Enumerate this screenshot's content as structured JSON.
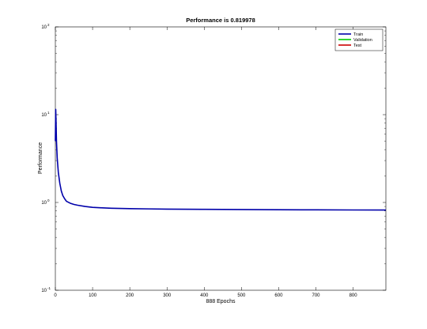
{
  "chart_data": {
    "type": "line",
    "title": "Performance is 0.819978",
    "xlabel": "888 Epochs",
    "ylabel": "Performance",
    "xlim": [
      0,
      888
    ],
    "ylim": [
      0.1,
      100
    ],
    "y_scale": "log",
    "grid": false,
    "legend_position": "top-right",
    "x_ticks": [
      0,
      100,
      200,
      300,
      400,
      500,
      600,
      700,
      800
    ],
    "x_tick_labels": [
      "0",
      "100",
      "200",
      "300",
      "400",
      "500",
      "600",
      "700",
      "800"
    ],
    "y_ticks": [
      0.1,
      1,
      10,
      100
    ],
    "y_tick_labels": [
      {
        "base": "10",
        "exp": "-1"
      },
      {
        "base": "10",
        "exp": "0"
      },
      {
        "base": "10",
        "exp": "1"
      },
      {
        "base": "10",
        "exp": "2"
      }
    ],
    "series": [
      {
        "name": "Train",
        "color": "#0000aa",
        "x": [
          0,
          1,
          2,
          3,
          5,
          8,
          12,
          16,
          20,
          25,
          30,
          40,
          50,
          60,
          80,
          100,
          120,
          150,
          200,
          250,
          300,
          400,
          500,
          600,
          700,
          800,
          888
        ],
        "y": [
          5.0,
          11.5,
          8.0,
          5.0,
          3.2,
          2.2,
          1.65,
          1.35,
          1.2,
          1.1,
          1.03,
          0.98,
          0.95,
          0.93,
          0.9,
          0.88,
          0.87,
          0.86,
          0.85,
          0.845,
          0.84,
          0.835,
          0.83,
          0.827,
          0.824,
          0.821,
          0.82
        ]
      },
      {
        "name": "Validation",
        "color": "#00cc00",
        "x": [],
        "y": []
      },
      {
        "name": "Test",
        "color": "#cc0000",
        "x": [],
        "y": []
      }
    ]
  }
}
